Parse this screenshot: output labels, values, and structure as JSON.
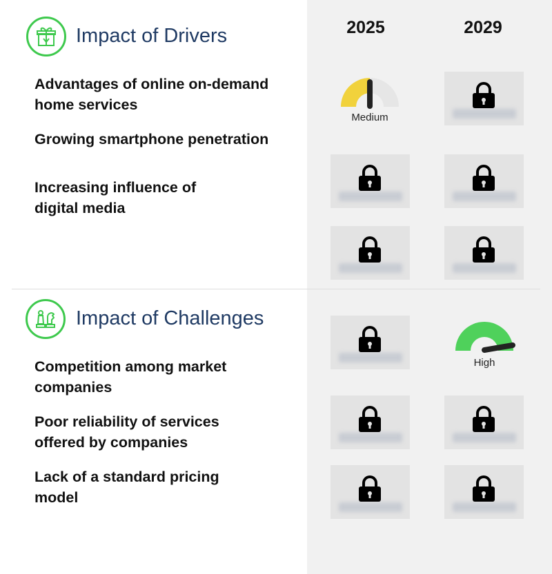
{
  "years": [
    "2025",
    "2029"
  ],
  "drivers": {
    "title": "Impact of Drivers",
    "items": [
      {
        "line1": "Advantages of online on-demand",
        "line2": "home services"
      },
      {
        "line1": "Growing smartphone penetration",
        "line2": ""
      },
      {
        "line1": "Increasing influence of",
        "line2": "digital media"
      }
    ],
    "gauge_2025": {
      "label": "Medium",
      "level": 0.5,
      "color": "#f1d23c"
    }
  },
  "challenges": {
    "title": "Impact of Challenges",
    "items": [
      {
        "line1": "Competition among market",
        "line2": "companies"
      },
      {
        "line1": "Poor reliability of services",
        "line2": "offered by companies"
      },
      {
        "line1": "Lack of a standard pricing",
        "line2": "model"
      }
    ],
    "gauge_2029": {
      "label": "High",
      "level": 0.9,
      "color": "#4fd15b"
    }
  },
  "colors": {
    "accent": "#3ec94d",
    "title": "#1f3a63",
    "panel": "#f1f1f1"
  },
  "icons": {
    "drivers": "gift-box-icon",
    "challenges": "chess-pieces-icon",
    "locked": "lock-icon"
  }
}
